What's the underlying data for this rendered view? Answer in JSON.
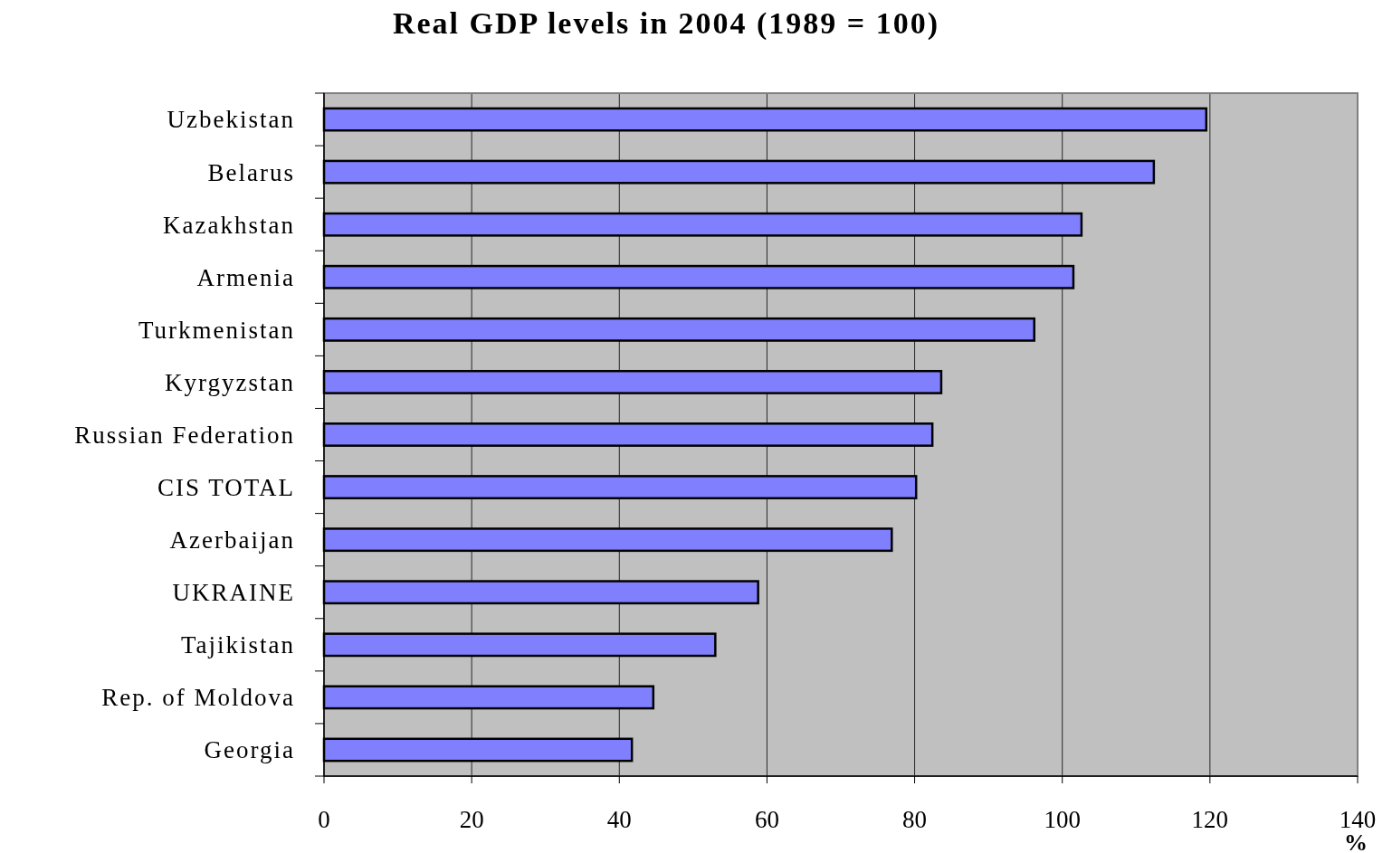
{
  "chart_data": {
    "type": "bar",
    "orientation": "horizontal",
    "title": "Real GDP levels in 2004 (1989 = 100)",
    "xlabel": "%",
    "categories": [
      "Uzbekistan",
      "Belarus",
      "Kazakhstan",
      "Armenia",
      "Turkmenistan",
      "Kyrgyzstan",
      "Russian Federation",
      "CIS TOTAL",
      "Azerbaijan",
      "UKRAINE",
      "Tajikistan",
      "Rep. of Moldova",
      "Georgia"
    ],
    "values": [
      119.5,
      112.4,
      102.6,
      101.5,
      96.2,
      83.6,
      82.4,
      80.2,
      76.9,
      58.8,
      53.0,
      44.6,
      41.7
    ],
    "color": "#8080ff",
    "xlim": [
      0,
      140
    ],
    "xticks": [
      0,
      20,
      40,
      60,
      80,
      100,
      120,
      140
    ],
    "grid": "x"
  }
}
